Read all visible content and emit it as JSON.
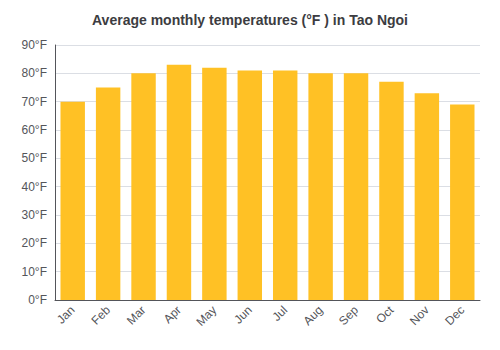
{
  "chart_data": {
    "type": "bar",
    "title": "Average monthly temperatures (°F ) in Tao Ngoi",
    "categories": [
      "Jan",
      "Feb",
      "Mar",
      "Apr",
      "May",
      "Jun",
      "Jul",
      "Aug",
      "Sep",
      "Oct",
      "Nov",
      "Dec"
    ],
    "values": [
      70,
      75,
      80,
      83,
      82,
      81,
      81,
      80,
      80,
      77,
      73,
      69
    ],
    "color": "#FFC125",
    "ylim": [
      0,
      90
    ],
    "yticks": [
      {
        "value": 0,
        "label": "0°F"
      },
      {
        "value": 10,
        "label": "10°F"
      },
      {
        "value": 20,
        "label": "20°F"
      },
      {
        "value": 30,
        "label": "30°F"
      },
      {
        "value": 40,
        "label": "40°F"
      },
      {
        "value": 50,
        "label": "50°F"
      },
      {
        "value": 60,
        "label": "60°F"
      },
      {
        "value": 70,
        "label": "70°F"
      },
      {
        "value": 80,
        "label": "80°F"
      },
      {
        "value": 90,
        "label": "90°F"
      }
    ],
    "grid": true
  }
}
